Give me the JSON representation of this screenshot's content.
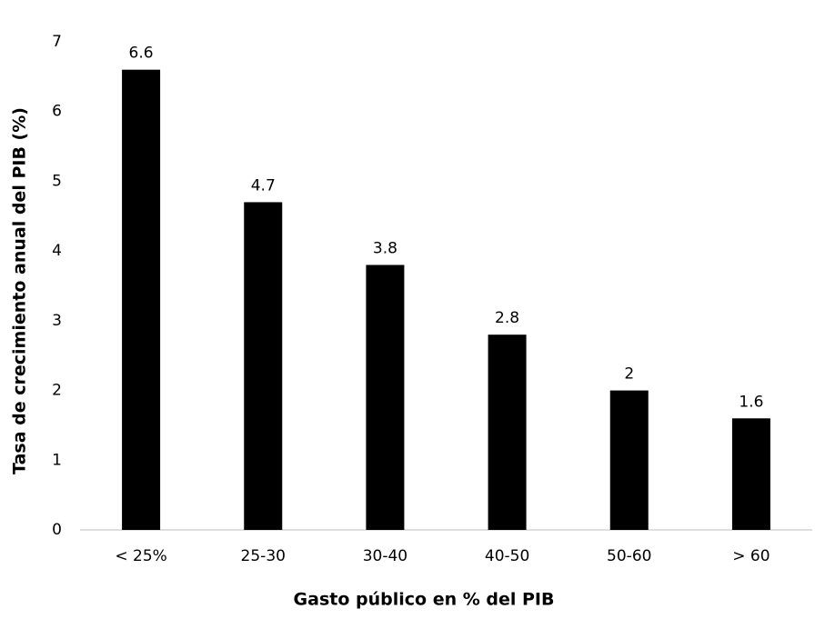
{
  "chart_data": {
    "type": "bar",
    "x_label": "Gasto público en % del PIB",
    "y_label": "Tasa de crecimiento anual del PIB (%)",
    "categories": [
      "< 25%",
      "25-30",
      "30-40",
      "40-50",
      "50-60",
      "> 60"
    ],
    "values": [
      6.6,
      4.7,
      3.8,
      2.8,
      2,
      1.6
    ],
    "color": "#000000",
    "ylim": [
      0,
      7
    ],
    "yticks": [
      0,
      1,
      2,
      3,
      4,
      5,
      6,
      7
    ],
    "grid": false
  }
}
